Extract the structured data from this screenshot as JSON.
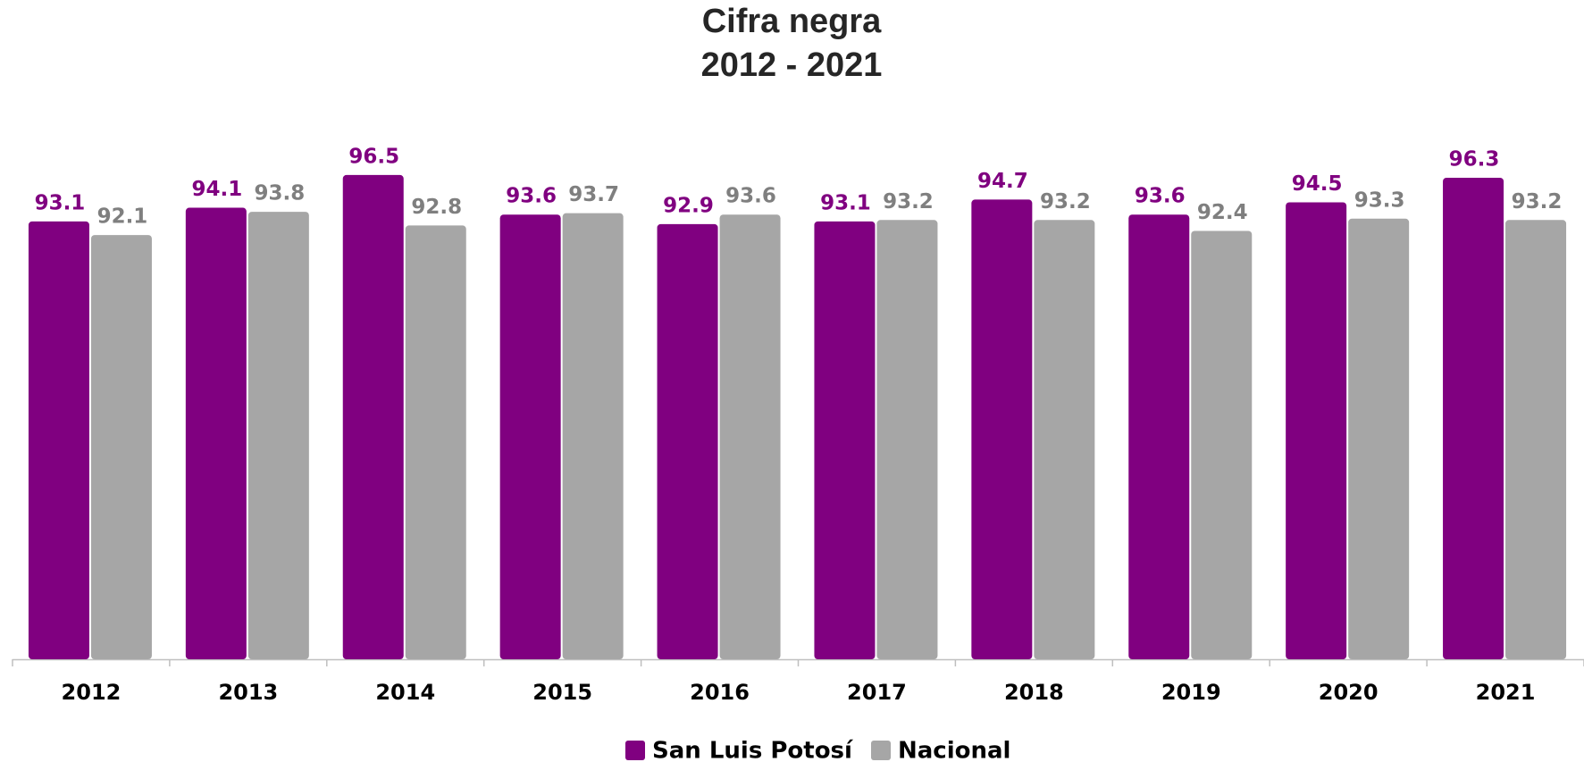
{
  "chart_data": {
    "type": "bar",
    "title": "Cifra negra",
    "subtitle": "2012 - 2021",
    "categories": [
      "2012",
      "2013",
      "2014",
      "2015",
      "2016",
      "2017",
      "2018",
      "2019",
      "2020",
      "2021"
    ],
    "series": [
      {
        "name": "San Luis Potosí",
        "color": "#800080",
        "label_color": "#800080",
        "values": [
          93.1,
          94.1,
          96.5,
          93.6,
          92.9,
          93.1,
          94.7,
          93.6,
          94.5,
          96.3
        ]
      },
      {
        "name": "Nacional",
        "color": "#a6a6a6",
        "label_color": "#7f7f7f",
        "values": [
          92.1,
          93.8,
          92.8,
          93.7,
          93.6,
          93.2,
          93.2,
          92.4,
          93.3,
          93.2
        ]
      }
    ],
    "ylim": [
      61,
      98
    ],
    "legend": "bottom"
  }
}
